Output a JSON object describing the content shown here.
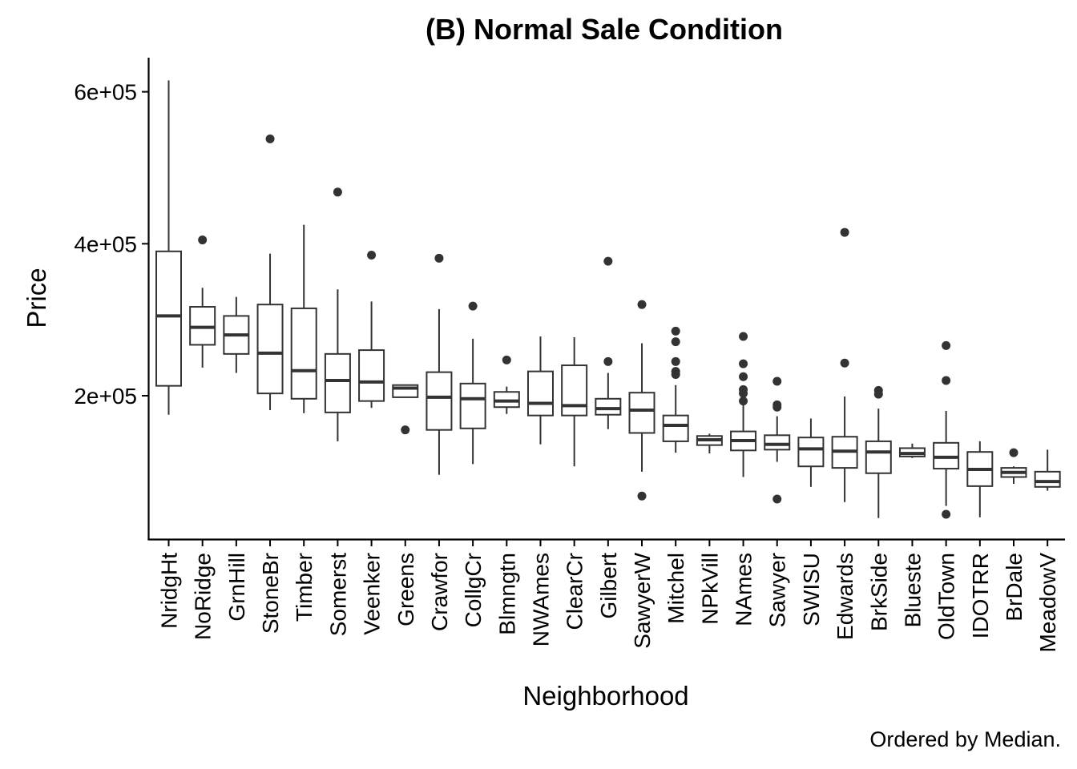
{
  "chart_data": {
    "type": "boxplot",
    "title": "(B) Normal Sale Condition",
    "xlabel": "Neighborhood",
    "ylabel": "Price",
    "caption": "Ordered by Median.",
    "ylim": [
      30000,
      640000
    ],
    "y_ticks": [
      200000,
      400000,
      600000
    ],
    "y_tick_labels": [
      "2e+05",
      "4e+05",
      "6e+05"
    ],
    "grid": false,
    "legend": "none",
    "colors": {
      "box_fill": "#ffffff",
      "box_stroke": "#333333",
      "outlier": "#333333",
      "axis": "#000000"
    },
    "boxes": [
      {
        "name": "NridgHt",
        "lower": 175000,
        "q1": 213000,
        "median": 305000,
        "q3": 390000,
        "upper": 615000,
        "outliers": []
      },
      {
        "name": "NoRidge",
        "lower": 237000,
        "q1": 267000,
        "median": 290000,
        "q3": 317000,
        "upper": 342000,
        "outliers": [
          405000
        ]
      },
      {
        "name": "GrnHill",
        "lower": 230000,
        "q1": 255000,
        "median": 280000,
        "q3": 305000,
        "upper": 330000,
        "outliers": []
      },
      {
        "name": "StoneBr",
        "lower": 181000,
        "q1": 203000,
        "median": 256000,
        "q3": 320000,
        "upper": 387000,
        "outliers": [
          538000
        ]
      },
      {
        "name": "Timber",
        "lower": 177000,
        "q1": 196000,
        "median": 233000,
        "q3": 315000,
        "upper": 425000,
        "outliers": []
      },
      {
        "name": "Somerst",
        "lower": 140000,
        "q1": 178000,
        "median": 220000,
        "q3": 255000,
        "upper": 340000,
        "outliers": [
          468000
        ]
      },
      {
        "name": "Veenker",
        "lower": 184000,
        "q1": 193000,
        "median": 218000,
        "q3": 260000,
        "upper": 324000,
        "outliers": [
          385000
        ]
      },
      {
        "name": "Greens",
        "lower": 198000,
        "q1": 198000,
        "median": 210000,
        "q3": 214000,
        "upper": 214000,
        "outliers": [
          155000
        ]
      },
      {
        "name": "Crawfor",
        "lower": 96000,
        "q1": 155000,
        "median": 198000,
        "q3": 231000,
        "upper": 314000,
        "outliers": [
          381000
        ]
      },
      {
        "name": "CollgCr",
        "lower": 110000,
        "q1": 157000,
        "median": 196000,
        "q3": 216000,
        "upper": 275000,
        "outliers": [
          318000
        ]
      },
      {
        "name": "Blmngtn",
        "lower": 176000,
        "q1": 185000,
        "median": 193000,
        "q3": 205000,
        "upper": 212000,
        "outliers": [
          247000
        ]
      },
      {
        "name": "NWAmes",
        "lower": 136000,
        "q1": 174000,
        "median": 190000,
        "q3": 232000,
        "upper": 278000,
        "outliers": []
      },
      {
        "name": "ClearCr",
        "lower": 107000,
        "q1": 174000,
        "median": 187000,
        "q3": 240000,
        "upper": 277000,
        "outliers": []
      },
      {
        "name": "Gilbert",
        "lower": 156000,
        "q1": 175000,
        "median": 183000,
        "q3": 196000,
        "upper": 230000,
        "outliers": [
          377000,
          245000
        ]
      },
      {
        "name": "SawyerW",
        "lower": 100000,
        "q1": 151000,
        "median": 181000,
        "q3": 204000,
        "upper": 269000,
        "outliers": [
          320000,
          68000
        ]
      },
      {
        "name": "Mitchel",
        "lower": 125000,
        "q1": 140000,
        "median": 161000,
        "q3": 174000,
        "upper": 214000,
        "outliers": [
          285000,
          271000,
          245000,
          232000,
          228000
        ]
      },
      {
        "name": "NPkVill",
        "lower": 124000,
        "q1": 135000,
        "median": 142000,
        "q3": 147000,
        "upper": 150000,
        "outliers": []
      },
      {
        "name": "NAmes",
        "lower": 93000,
        "q1": 128000,
        "median": 141000,
        "q3": 153000,
        "upper": 189000,
        "outliers": [
          278000,
          242000,
          225000,
          208000,
          203000,
          193000
        ]
      },
      {
        "name": "Sawyer",
        "lower": 113000,
        "q1": 129000,
        "median": 136000,
        "q3": 148000,
        "upper": 173000,
        "outliers": [
          219000,
          188000,
          185000,
          64000
        ]
      },
      {
        "name": "SWISU",
        "lower": 80000,
        "q1": 107000,
        "median": 130000,
        "q3": 145000,
        "upper": 170000,
        "outliers": []
      },
      {
        "name": "Edwards",
        "lower": 60000,
        "q1": 105000,
        "median": 127000,
        "q3": 146000,
        "upper": 199000,
        "outliers": [
          415000,
          243000
        ]
      },
      {
        "name": "BrkSide",
        "lower": 39000,
        "q1": 98000,
        "median": 126000,
        "q3": 140000,
        "upper": 183000,
        "outliers": [
          207000,
          202000
        ]
      },
      {
        "name": "Blueste",
        "lower": 118000,
        "q1": 120000,
        "median": 124000,
        "q3": 131000,
        "upper": 137000,
        "outliers": []
      },
      {
        "name": "OldTown",
        "lower": 55000,
        "q1": 104000,
        "median": 119000,
        "q3": 138000,
        "upper": 180000,
        "outliers": [
          266000,
          220000,
          44000
        ]
      },
      {
        "name": "IDOTRR",
        "lower": 40000,
        "q1": 81000,
        "median": 103000,
        "q3": 126000,
        "upper": 140000,
        "outliers": []
      },
      {
        "name": "BrDale",
        "lower": 84000,
        "q1": 93000,
        "median": 99000,
        "q3": 105000,
        "upper": 107000,
        "outliers": [
          125000
        ]
      },
      {
        "name": "MeadowV",
        "lower": 75000,
        "q1": 80000,
        "median": 87000,
        "q3": 100000,
        "upper": 129000,
        "outliers": []
      }
    ]
  }
}
